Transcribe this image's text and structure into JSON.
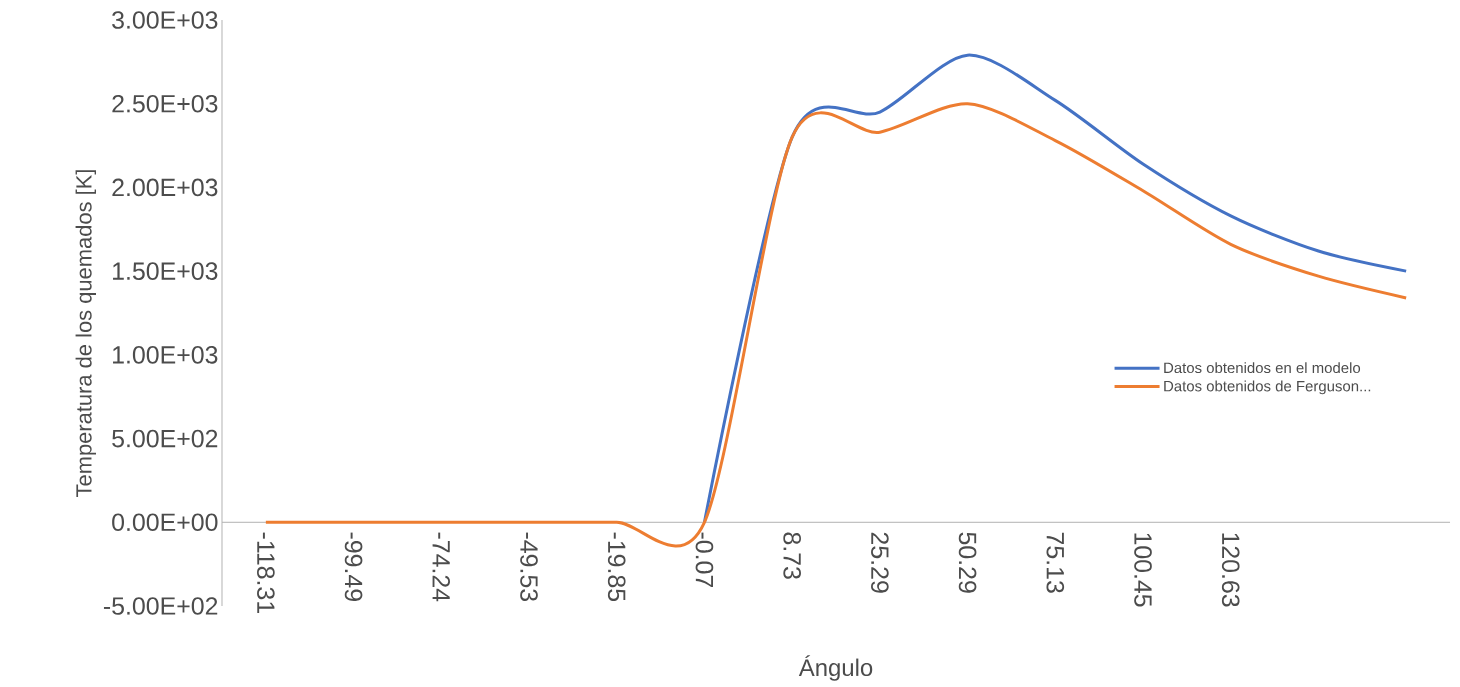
{
  "chart_data": {
    "type": "line",
    "xlabel": "Ángulo",
    "ylabel": "Temperatura de los quemados [K]",
    "categories": [
      "-118.31",
      "-99.49",
      "-74.24",
      "-49.53",
      "-19.85",
      "-0.07",
      "8.73",
      "25.29",
      "50.29",
      "75.13",
      "100.45",
      "120.63",
      null,
      null
    ],
    "series": [
      {
        "name": "Datos obtenidos en el modelo",
        "color": "#4472c4",
        "values": [
          null,
          null,
          null,
          null,
          null,
          0,
          2300,
          2450,
          2790,
          2520,
          2140,
          1830,
          1620,
          1500
        ]
      },
      {
        "name": "Datos obtenidos de Ferguson...",
        "color": "#ed7d31",
        "values": [
          0,
          0,
          0,
          0,
          0,
          0,
          2300,
          2330,
          2500,
          2280,
          1980,
          1660,
          1470,
          1340
        ]
      }
    ],
    "ylim": [
      -500,
      3000
    ],
    "yticks": [
      {
        "value": -500,
        "label": "-5.00E+02"
      },
      {
        "value": 0,
        "label": "0.00E+00"
      },
      {
        "value": 500,
        "label": "5.00E+02"
      },
      {
        "value": 1000,
        "label": "1.00E+03"
      },
      {
        "value": 1500,
        "label": "1.50E+03"
      },
      {
        "value": 2000,
        "label": "2.00E+03"
      },
      {
        "value": 2500,
        "label": "2.50E+03"
      },
      {
        "value": 3000,
        "label": "3.00E+03"
      }
    ],
    "legend": "right",
    "grid": false,
    "marker": "none",
    "line_style": "solid"
  }
}
